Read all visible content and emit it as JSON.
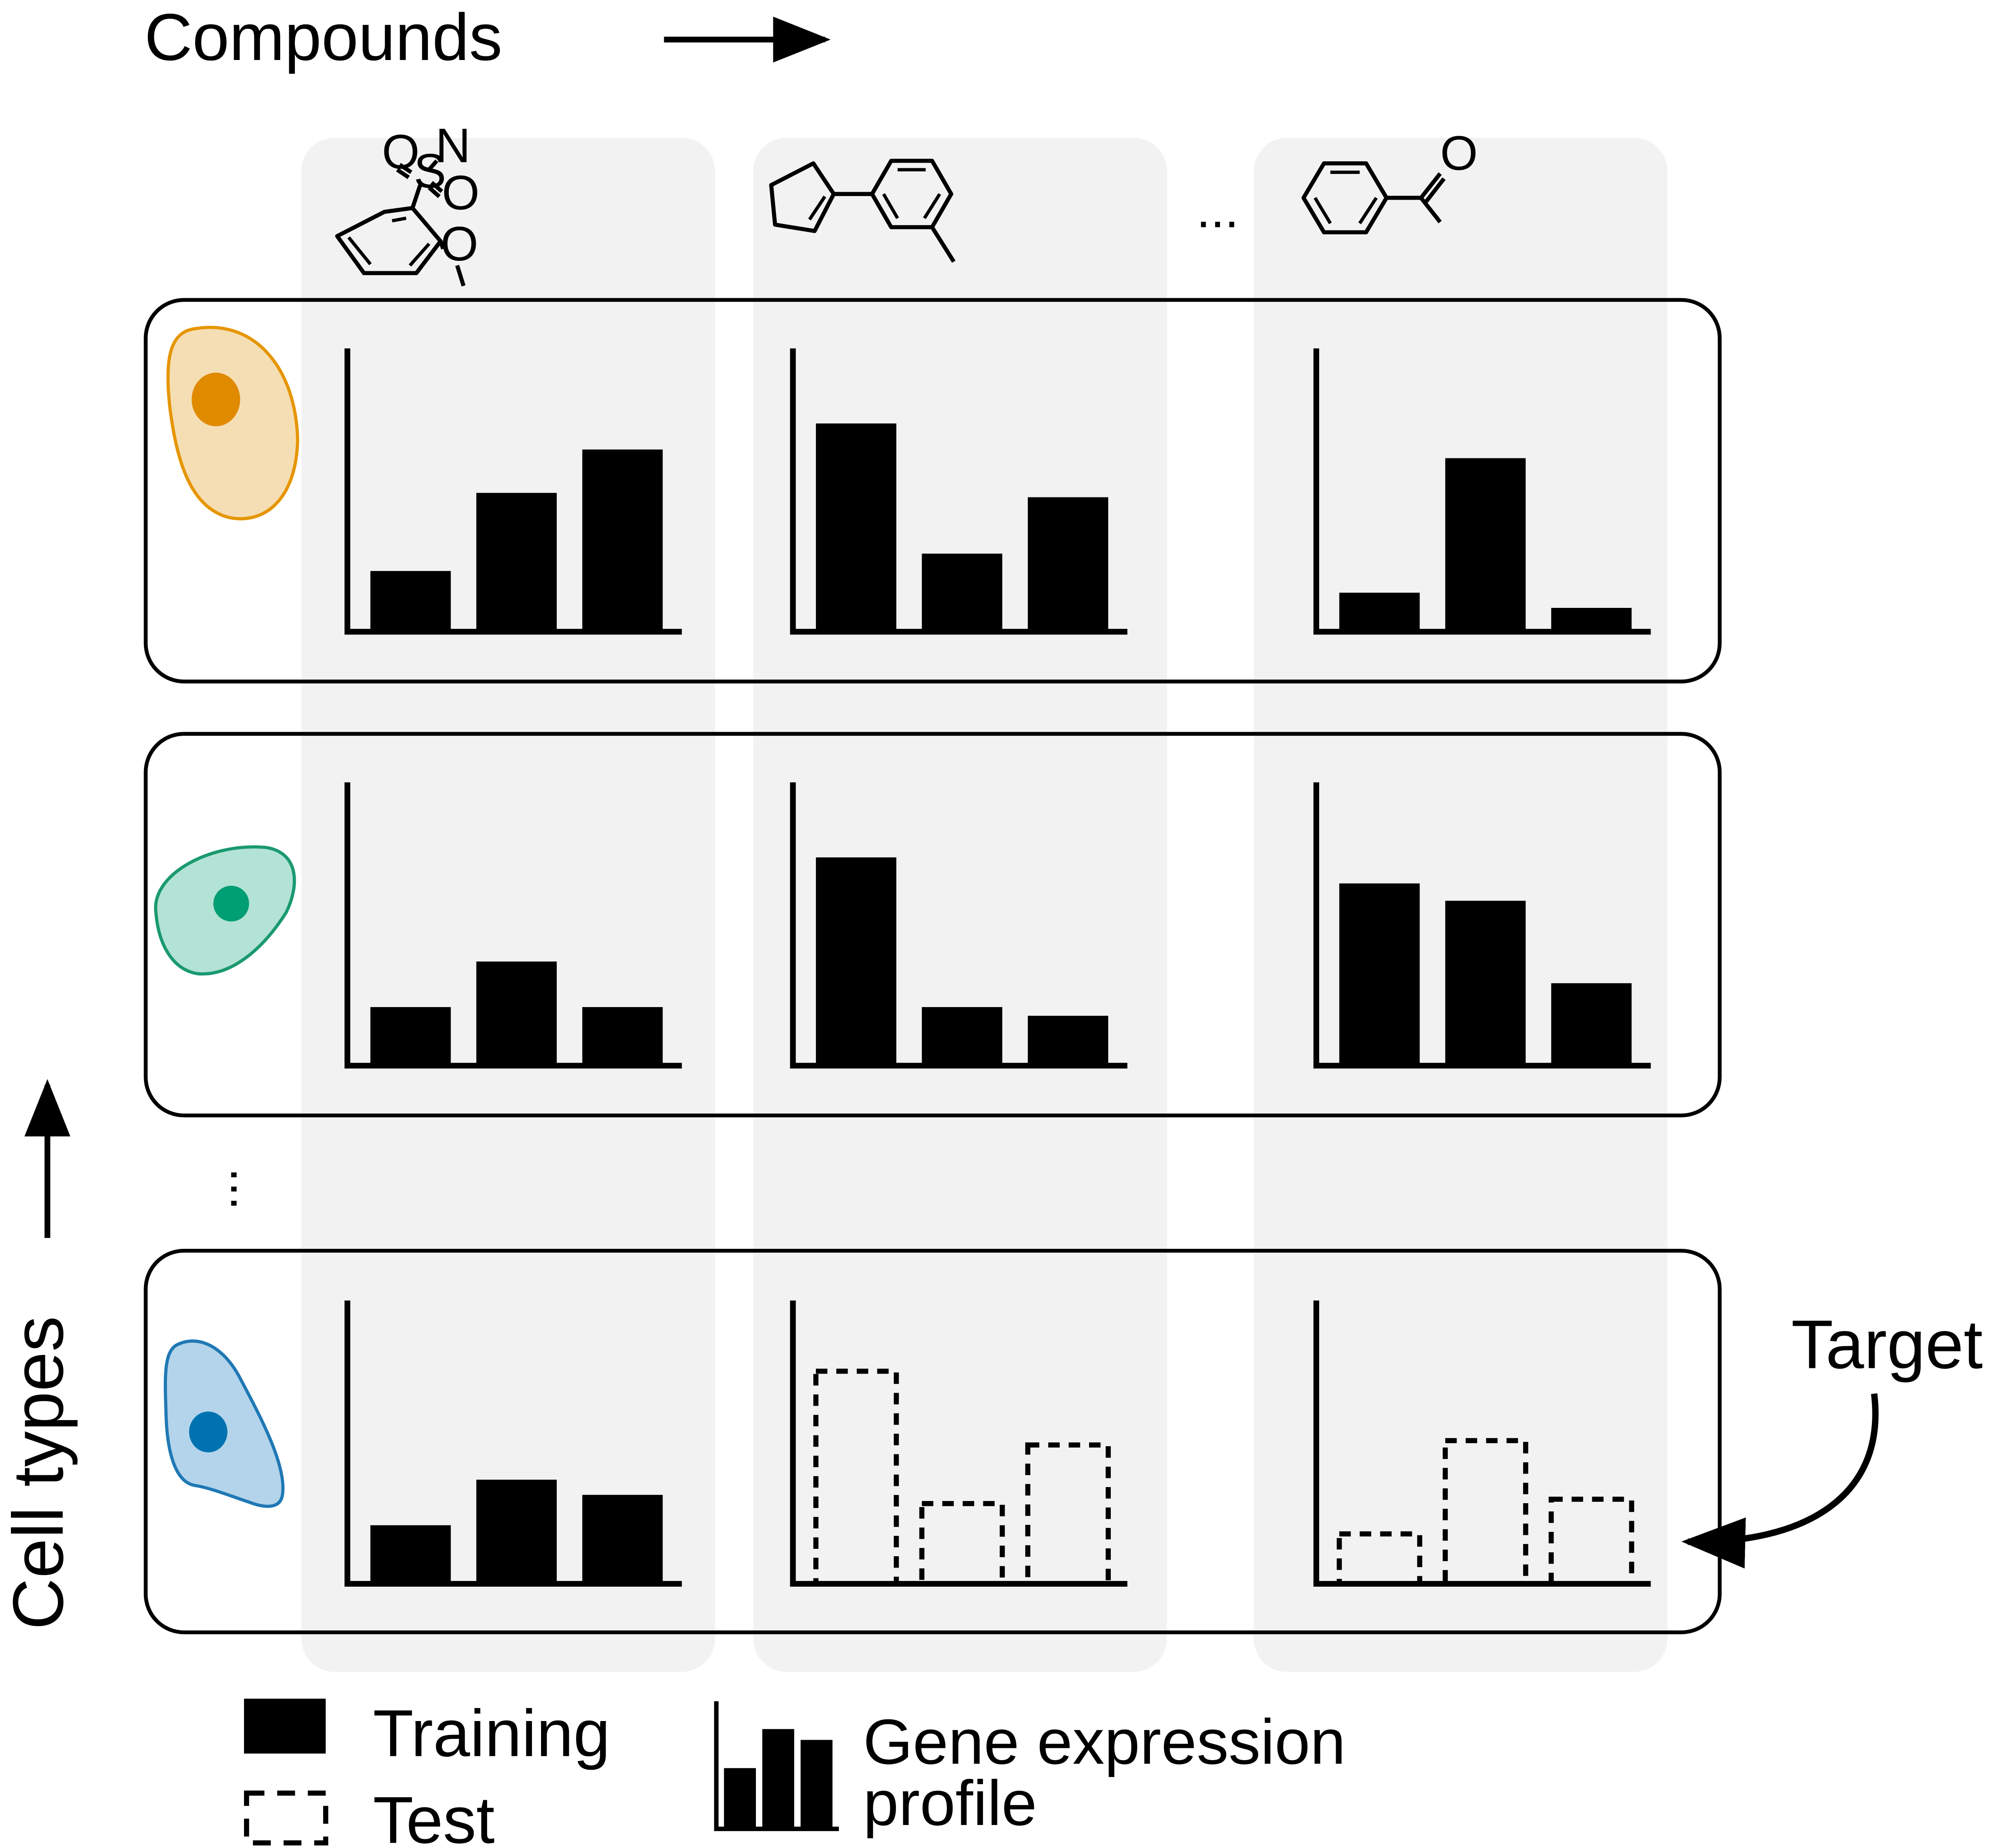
{
  "header": {
    "compounds_label": "Compounds"
  },
  "axis": {
    "cell_types_label": "Cell types"
  },
  "target_label": "Target",
  "column_ellipsis": "...",
  "row_ellipsis": "...",
  "colors": {
    "column_band": "#f2f2f2",
    "cell_orange_fill": "#f5deb3",
    "cell_orange_stroke": "#e69500",
    "cell_orange_nucleus": "#e08a00",
    "cell_green_fill": "#b3e3d4",
    "cell_green_stroke": "#1a9970",
    "cell_green_nucleus": "#009e73",
    "cell_blue_fill": "#b3d4ea",
    "cell_blue_stroke": "#1f78b4",
    "cell_blue_nucleus": "#0072b2"
  },
  "compounds": [
    {
      "name": "2-methoxybenzenesulfonamide",
      "atoms": [
        "O",
        "S",
        "N",
        "O",
        "O"
      ]
    },
    {
      "name": "1-(cyclopentenyl)-3-methylbenzene",
      "atoms": []
    },
    {
      "name": "acetophenone",
      "atoms": [
        "O"
      ]
    }
  ],
  "cell_types": [
    {
      "name": "orange-cell",
      "icon": "cell-icon"
    },
    {
      "name": "green-cell",
      "icon": "cell-icon"
    },
    {
      "name": "blue-cell",
      "icon": "cell-icon"
    }
  ],
  "profiles": [
    [
      {
        "values": [
          1.4,
          3.2,
          4.2
        ],
        "kind": "training"
      },
      {
        "values": [
          4.8,
          1.8,
          3.1
        ],
        "kind": "training"
      },
      {
        "values": [
          0.9,
          4.0,
          0.55
        ],
        "kind": "training"
      }
    ],
    [
      {
        "values": [
          1.35,
          2.4,
          1.35
        ],
        "kind": "training"
      },
      {
        "values": [
          4.8,
          1.35,
          1.15
        ],
        "kind": "training"
      },
      {
        "values": [
          4.2,
          3.8,
          1.9
        ],
        "kind": "training"
      }
    ],
    [
      {
        "values": [
          1.35,
          2.4,
          2.05
        ],
        "kind": "training"
      },
      {
        "values": [
          4.9,
          1.85,
          3.2
        ],
        "kind": "test"
      },
      {
        "values": [
          1.15,
          3.3,
          1.95
        ],
        "kind": "test"
      }
    ]
  ],
  "legend": {
    "training_label": "Training",
    "test_label": "Test",
    "profile_label_line1": "Gene expression",
    "profile_label_line2": "profile",
    "profile_icon_values": [
      1.4,
      2.3,
      2.05
    ]
  }
}
